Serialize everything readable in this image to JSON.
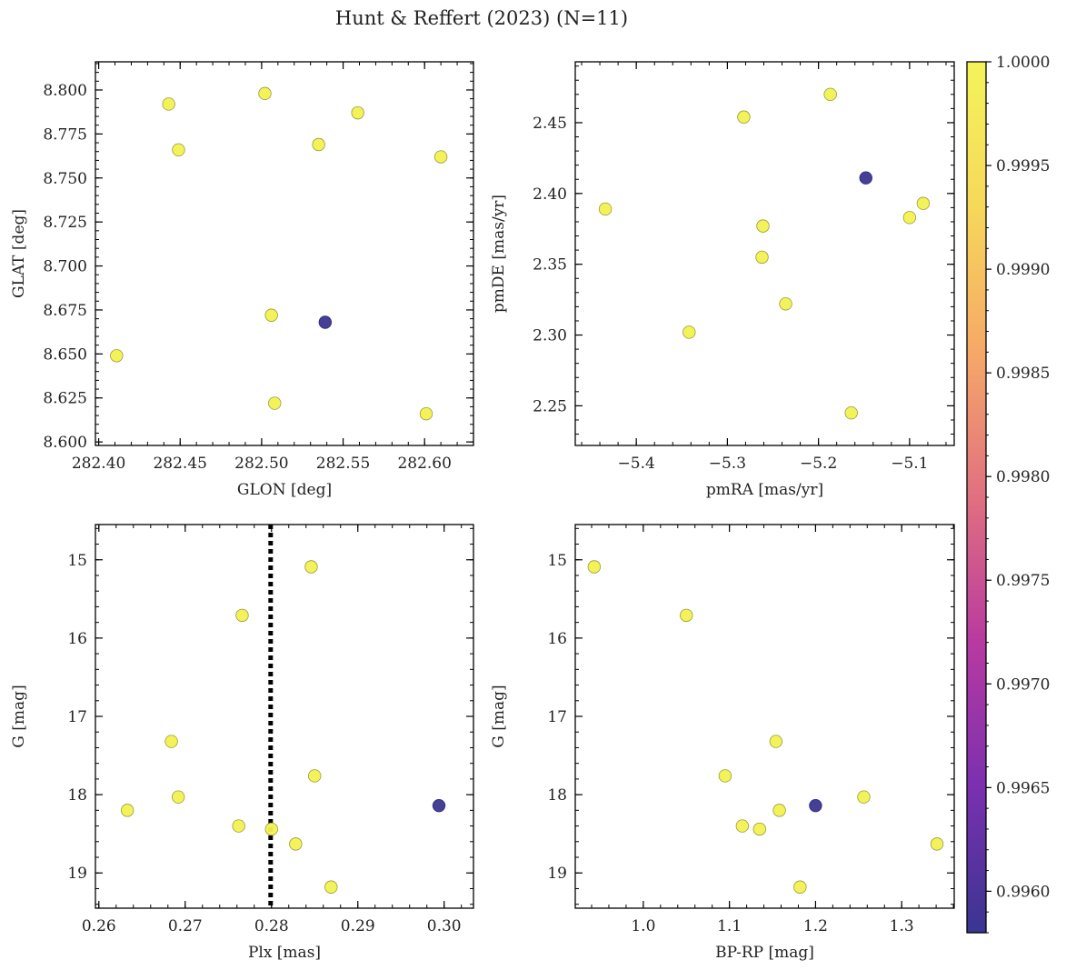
{
  "figure": {
    "title": "Hunt & Reffert (2023) (N=11)"
  },
  "colorbar": {
    "min": 0.9958,
    "max": 1.0,
    "ticks": [
      0.996,
      0.9965,
      0.997,
      0.9975,
      0.998,
      0.9985,
      0.999,
      0.9995,
      1.0
    ],
    "tick_labels": [
      "0.9960",
      "0.9965",
      "0.9970",
      "0.9975",
      "0.9980",
      "0.9985",
      "0.9990",
      "0.9995",
      "1.0000"
    ],
    "colormap": [
      "#3a3591",
      "#7a30b0",
      "#b83aa0",
      "#e07080",
      "#f6a868",
      "#f6d85a",
      "#f4f45a"
    ]
  },
  "colors": {
    "high": "#f2f250",
    "low": "#3c3590",
    "edge": "#9a9a40",
    "vline": "#000000"
  },
  "chart_data": [
    {
      "type": "scatter",
      "xlabel": "GLON [deg]",
      "ylabel": "GLAT [deg]",
      "xlim": [
        282.398,
        282.63
      ],
      "ylim": [
        8.598,
        8.816
      ],
      "xticks": [
        282.4,
        282.45,
        282.5,
        282.55,
        282.6
      ],
      "xtick_labels": [
        "282.40",
        "282.45",
        "282.50",
        "282.55",
        "282.60"
      ],
      "yticks": [
        8.6,
        8.625,
        8.65,
        8.675,
        8.7,
        8.725,
        8.75,
        8.775,
        8.8
      ],
      "ytick_labels": [
        "8.600",
        "8.625",
        "8.650",
        "8.675",
        "8.700",
        "8.725",
        "8.750",
        "8.775",
        "8.800"
      ],
      "invert_y": false,
      "points": [
        {
          "x": 282.411,
          "y": 8.649,
          "p": 1.0
        },
        {
          "x": 282.443,
          "y": 8.792,
          "p": 1.0
        },
        {
          "x": 282.449,
          "y": 8.766,
          "p": 1.0
        },
        {
          "x": 282.502,
          "y": 8.798,
          "p": 1.0
        },
        {
          "x": 282.506,
          "y": 8.672,
          "p": 1.0
        },
        {
          "x": 282.508,
          "y": 8.622,
          "p": 1.0
        },
        {
          "x": 282.535,
          "y": 8.769,
          "p": 1.0
        },
        {
          "x": 282.539,
          "y": 8.668,
          "p": 0.9958
        },
        {
          "x": 282.559,
          "y": 8.787,
          "p": 1.0
        },
        {
          "x": 282.601,
          "y": 8.616,
          "p": 1.0
        },
        {
          "x": 282.61,
          "y": 8.762,
          "p": 1.0
        }
      ]
    },
    {
      "type": "scatter",
      "xlabel": "pmRA [mas/yr]",
      "ylabel": "pmDE [mas/yr]",
      "xlim": [
        -5.467,
        -5.051
      ],
      "ylim": [
        2.222,
        2.493
      ],
      "xticks": [
        -5.4,
        -5.3,
        -5.2,
        -5.1
      ],
      "xtick_labels": [
        "−5.4",
        "−5.3",
        "−5.2",
        "−5.1"
      ],
      "yticks": [
        2.25,
        2.3,
        2.35,
        2.4,
        2.45
      ],
      "ytick_labels": [
        "2.25",
        "2.30",
        "2.35",
        "2.40",
        "2.45"
      ],
      "invert_y": false,
      "points": [
        {
          "x": -5.434,
          "y": 2.389,
          "p": 1.0
        },
        {
          "x": -5.342,
          "y": 2.302,
          "p": 1.0
        },
        {
          "x": -5.282,
          "y": 2.454,
          "p": 1.0
        },
        {
          "x": -5.261,
          "y": 2.377,
          "p": 1.0
        },
        {
          "x": -5.262,
          "y": 2.355,
          "p": 1.0
        },
        {
          "x": -5.236,
          "y": 2.322,
          "p": 1.0
        },
        {
          "x": -5.187,
          "y": 2.47,
          "p": 1.0
        },
        {
          "x": -5.164,
          "y": 2.245,
          "p": 1.0
        },
        {
          "x": -5.148,
          "y": 2.411,
          "p": 0.9958
        },
        {
          "x": -5.1,
          "y": 2.383,
          "p": 1.0
        },
        {
          "x": -5.085,
          "y": 2.393,
          "p": 1.0
        }
      ]
    },
    {
      "type": "scatter",
      "xlabel": "Plx [mas]",
      "ylabel": "G [mag]",
      "xlim": [
        0.2596,
        0.3034
      ],
      "ylim": [
        14.55,
        19.45
      ],
      "xticks": [
        0.26,
        0.27,
        0.28,
        0.29,
        0.3
      ],
      "xtick_labels": [
        "0.26",
        "0.27",
        "0.28",
        "0.29",
        "0.30"
      ],
      "yticks": [
        15,
        16,
        17,
        18,
        19
      ],
      "ytick_labels": [
        "15",
        "16",
        "17",
        "18",
        "19"
      ],
      "invert_y": true,
      "vline": 0.2799,
      "points": [
        {
          "x": 0.2633,
          "y": 18.2,
          "p": 1.0
        },
        {
          "x": 0.2684,
          "y": 17.32,
          "p": 1.0
        },
        {
          "x": 0.2692,
          "y": 18.03,
          "p": 1.0
        },
        {
          "x": 0.2762,
          "y": 18.4,
          "p": 1.0
        },
        {
          "x": 0.2766,
          "y": 15.71,
          "p": 1.0
        },
        {
          "x": 0.28,
          "y": 18.44,
          "p": 1.0
        },
        {
          "x": 0.2828,
          "y": 18.63,
          "p": 1.0
        },
        {
          "x": 0.2846,
          "y": 15.09,
          "p": 1.0
        },
        {
          "x": 0.285,
          "y": 17.76,
          "p": 1.0
        },
        {
          "x": 0.2869,
          "y": 19.18,
          "p": 1.0
        },
        {
          "x": 0.2994,
          "y": 18.14,
          "p": 0.9958
        }
      ]
    },
    {
      "type": "scatter",
      "xlabel": "BP-RP [mag]",
      "ylabel": "G [mag]",
      "xlim": [
        0.921,
        1.361
      ],
      "ylim": [
        14.55,
        19.45
      ],
      "xticks": [
        1.0,
        1.1,
        1.2,
        1.3
      ],
      "xtick_labels": [
        "1.0",
        "1.1",
        "1.2",
        "1.3"
      ],
      "yticks": [
        15,
        16,
        17,
        18,
        19
      ],
      "ytick_labels": [
        "15",
        "16",
        "17",
        "18",
        "19"
      ],
      "invert_y": true,
      "points": [
        {
          "x": 0.943,
          "y": 15.09,
          "p": 1.0
        },
        {
          "x": 1.05,
          "y": 15.71,
          "p": 1.0
        },
        {
          "x": 1.095,
          "y": 17.76,
          "p": 1.0
        },
        {
          "x": 1.115,
          "y": 18.4,
          "p": 1.0
        },
        {
          "x": 1.135,
          "y": 18.44,
          "p": 1.0
        },
        {
          "x": 1.154,
          "y": 17.32,
          "p": 1.0
        },
        {
          "x": 1.158,
          "y": 18.2,
          "p": 1.0
        },
        {
          "x": 1.182,
          "y": 19.18,
          "p": 1.0
        },
        {
          "x": 1.2,
          "y": 18.14,
          "p": 0.9958
        },
        {
          "x": 1.256,
          "y": 18.03,
          "p": 1.0
        },
        {
          "x": 1.341,
          "y": 18.63,
          "p": 1.0
        }
      ]
    }
  ]
}
